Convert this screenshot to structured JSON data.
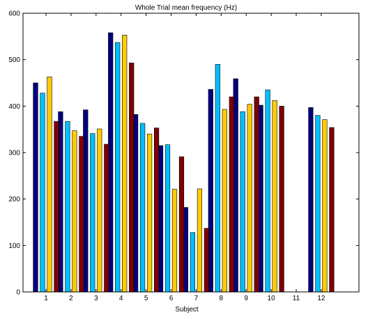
{
  "chart_data": {
    "type": "bar",
    "title": "Whole Trial mean frequency (Hz)",
    "xlabel": "Subject",
    "ylabel": "",
    "categories": [
      "1",
      "2",
      "3",
      "4",
      "5",
      "6",
      "7",
      "8",
      "9",
      "10",
      "11",
      "12"
    ],
    "ylim": [
      0,
      600
    ],
    "yticks": [
      0,
      100,
      200,
      300,
      400,
      500,
      600
    ],
    "grid": false,
    "legend": "none",
    "series": [
      {
        "color": "#00007f",
        "values": [
          450,
          388,
          392,
          558,
          382,
          315,
          182,
          436,
          459,
          402,
          0,
          397
        ]
      },
      {
        "color": "#00bfff",
        "values": [
          428,
          367,
          341,
          537,
          363,
          317,
          128,
          490,
          388,
          435,
          0,
          380
        ]
      },
      {
        "color": "#ffcc00",
        "values": [
          463,
          347,
          351,
          553,
          340,
          221,
          222,
          393,
          404,
          412,
          0,
          371
        ]
      },
      {
        "color": "#7f0000",
        "values": [
          367,
          335,
          318,
          493,
          353,
          291,
          137,
          420,
          420,
          400,
          0,
          354
        ]
      }
    ]
  }
}
